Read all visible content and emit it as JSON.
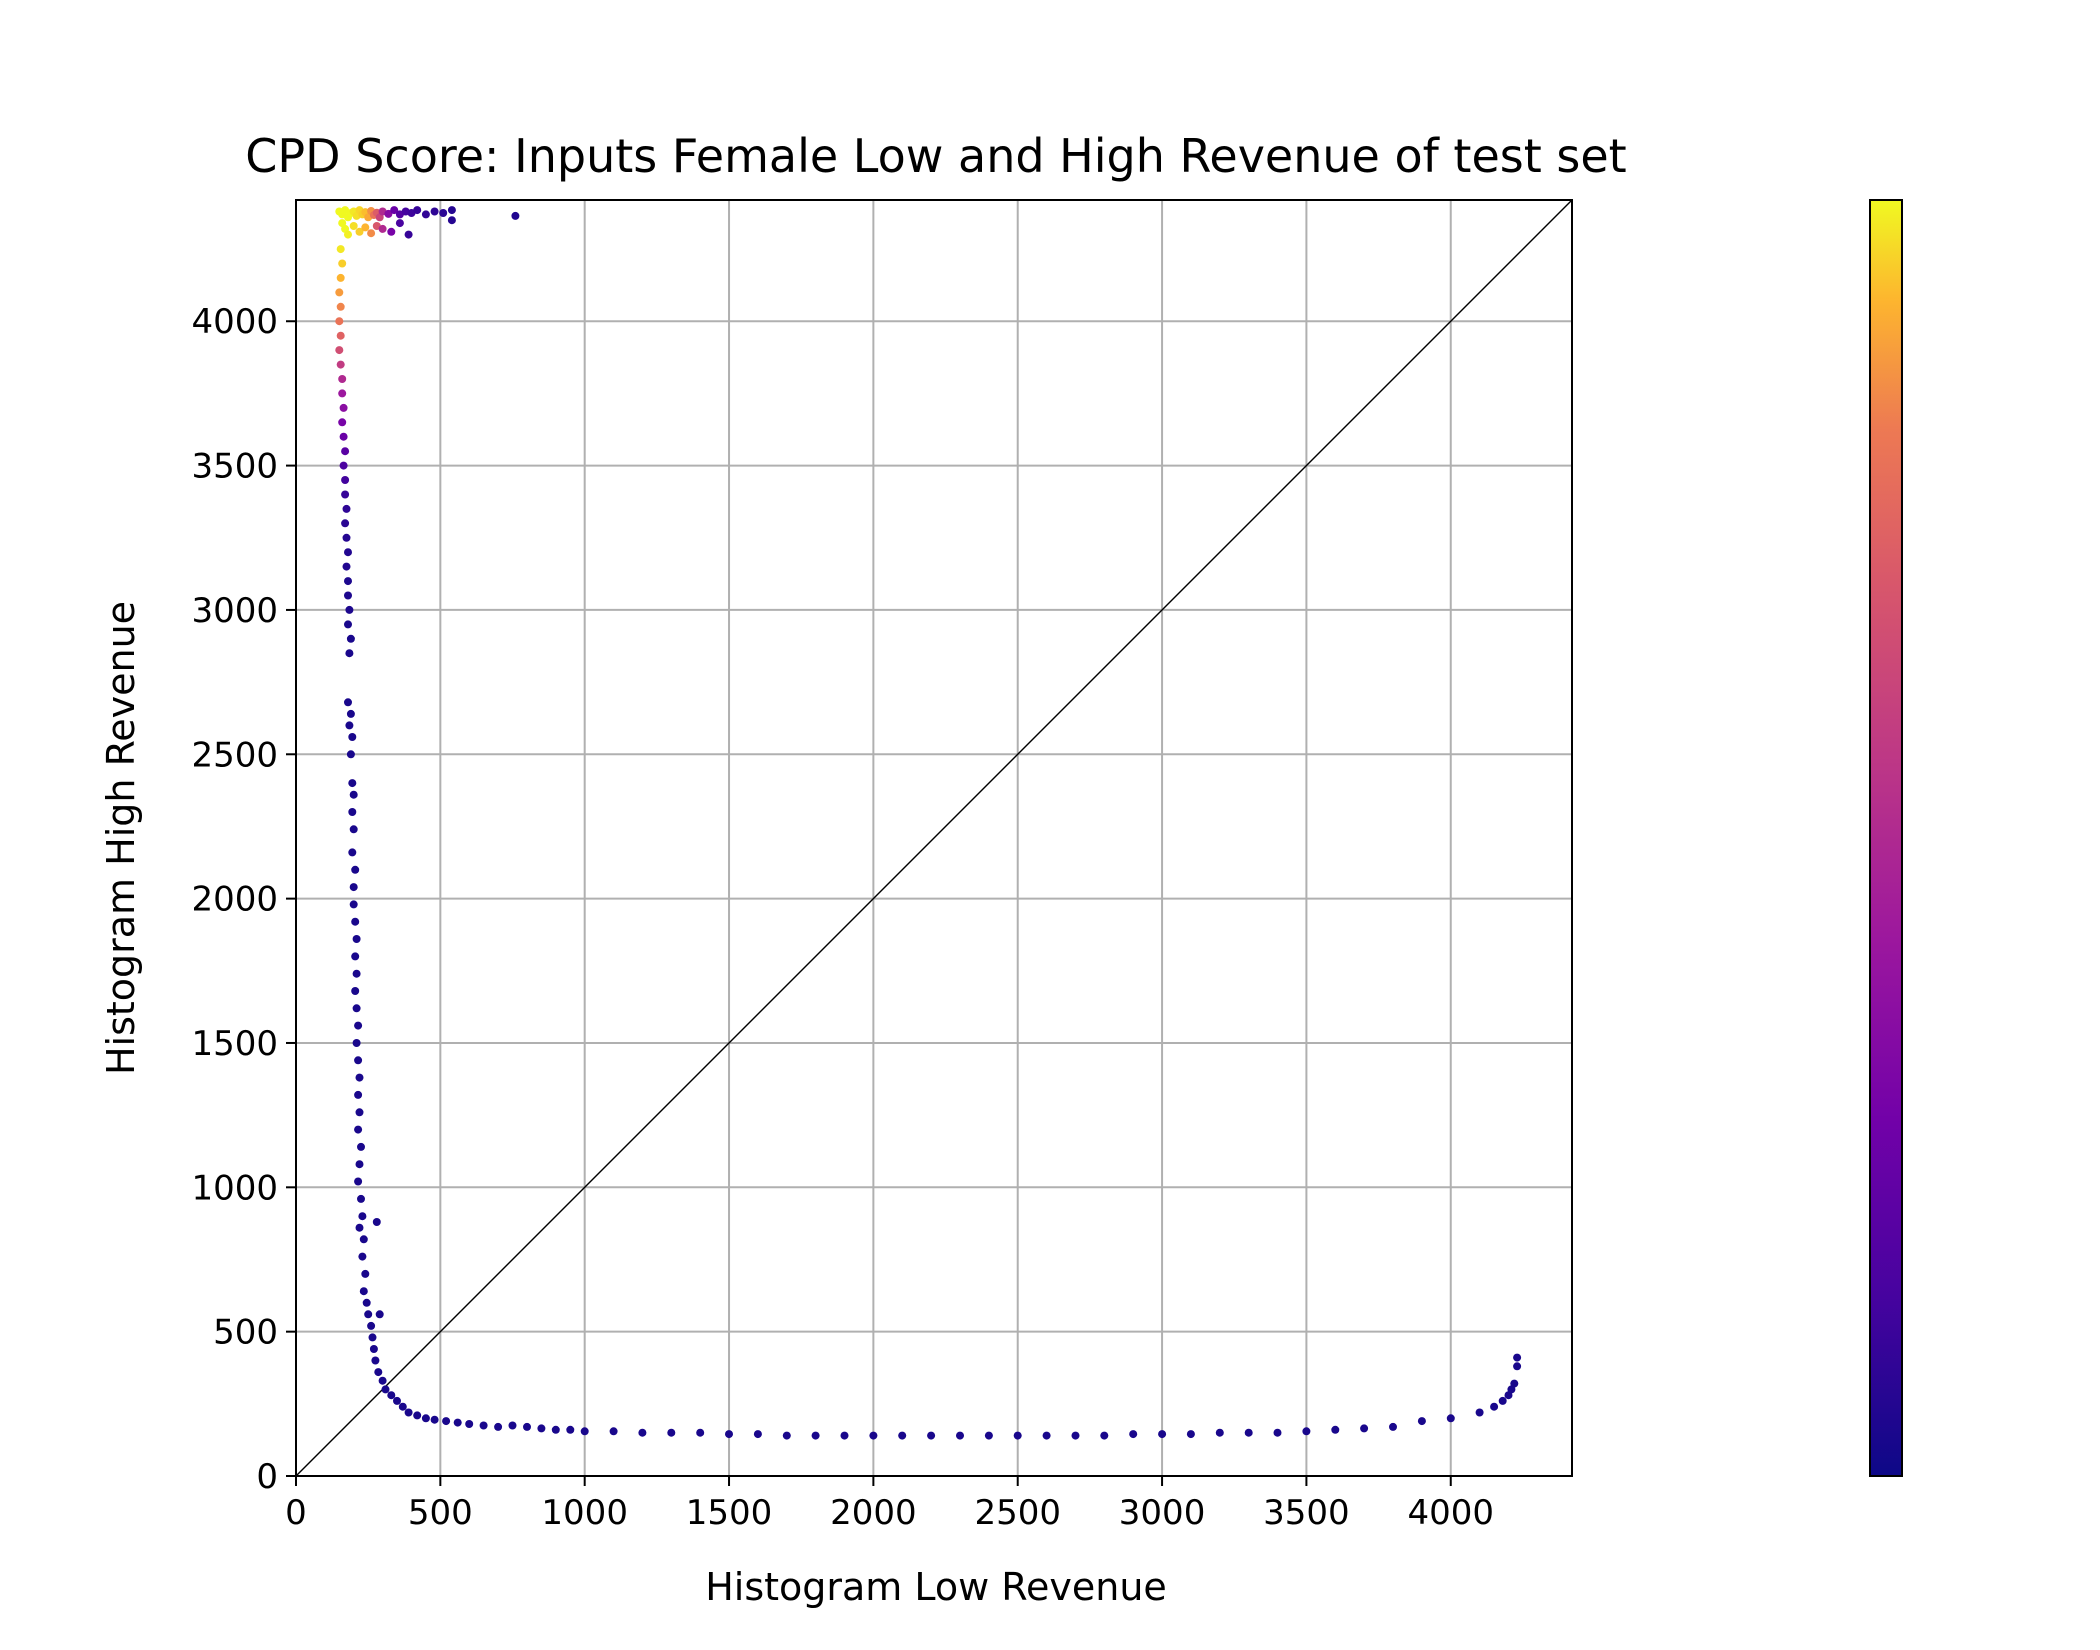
{
  "chart_data": {
    "type": "scatter",
    "title": "CPD Score: Inputs Female Low and High Revenue of test set",
    "xlabel": "Histogram Low Revenue",
    "ylabel": "Histogram High Revenue",
    "xlim": [
      0,
      4420
    ],
    "ylim": [
      0,
      4420
    ],
    "xticks": [
      0,
      500,
      1000,
      1500,
      2000,
      2500,
      3000,
      3500,
      4000
    ],
    "yticks": [
      0,
      500,
      1000,
      1500,
      2000,
      2500,
      3000,
      3500,
      4000
    ],
    "grid": true,
    "reference_line": "y = x",
    "colormap": "plasma",
    "colorbar": {
      "position": "right",
      "ticks": []
    },
    "colors": {
      "plasma_low": "#0d0887",
      "plasma_mid": "#9c179e",
      "plasma_orange": "#ed7953",
      "plasma_high": "#f0f921",
      "grid": "#b0b0b0",
      "axes": "#000000"
    },
    "series": [
      {
        "points": [
          [
            150,
            4380,
            1.0
          ],
          [
            160,
            4370,
            1.0
          ],
          [
            170,
            4385,
            1.0
          ],
          [
            180,
            4360,
            1.0
          ],
          [
            190,
            4375,
            1.0
          ],
          [
            200,
            4380,
            0.98
          ],
          [
            210,
            4365,
            0.97
          ],
          [
            220,
            4385,
            0.96
          ],
          [
            230,
            4370,
            0.95
          ],
          [
            240,
            4378,
            0.93
          ],
          [
            250,
            4360,
            0.9
          ],
          [
            260,
            4382,
            0.86
          ],
          [
            270,
            4368,
            0.8
          ],
          [
            280,
            4376,
            0.72
          ],
          [
            290,
            4360,
            0.62
          ],
          [
            300,
            4380,
            0.5
          ],
          [
            320,
            4372,
            0.35
          ],
          [
            340,
            4385,
            0.25
          ],
          [
            360,
            4370,
            0.18
          ],
          [
            380,
            4380,
            0.14
          ],
          [
            400,
            4375,
            0.12
          ],
          [
            420,
            4385,
            0.1
          ],
          [
            450,
            4370,
            0.09
          ],
          [
            480,
            4380,
            0.08
          ],
          [
            510,
            4375,
            0.07
          ],
          [
            540,
            4385,
            0.06
          ],
          [
            540,
            4350,
            0.06
          ],
          [
            760,
            4365,
            0.05
          ],
          [
            160,
            4340,
            1.0
          ],
          [
            170,
            4320,
            1.0
          ],
          [
            180,
            4300,
            0.99
          ],
          [
            200,
            4330,
            0.97
          ],
          [
            220,
            4310,
            0.95
          ],
          [
            240,
            4325,
            0.92
          ],
          [
            260,
            4305,
            0.85
          ],
          [
            280,
            4330,
            0.7
          ],
          [
            300,
            4320,
            0.5
          ],
          [
            330,
            4310,
            0.3
          ],
          [
            360,
            4340,
            0.15
          ],
          [
            390,
            4300,
            0.1
          ],
          [
            155,
            4250,
            0.98
          ],
          [
            160,
            4200,
            0.95
          ],
          [
            155,
            4150,
            0.92
          ],
          [
            150,
            4100,
            0.88
          ],
          [
            155,
            4050,
            0.84
          ],
          [
            150,
            4000,
            0.8
          ],
          [
            155,
            3950,
            0.74
          ],
          [
            150,
            3900,
            0.66
          ],
          [
            155,
            3850,
            0.58
          ],
          [
            160,
            3800,
            0.5
          ],
          [
            160,
            3750,
            0.42
          ],
          [
            165,
            3700,
            0.36
          ],
          [
            160,
            3650,
            0.3
          ],
          [
            165,
            3600,
            0.25
          ],
          [
            170,
            3550,
            0.2
          ],
          [
            165,
            3500,
            0.16
          ],
          [
            170,
            3450,
            0.13
          ],
          [
            170,
            3400,
            0.1
          ],
          [
            175,
            3350,
            0.08
          ],
          [
            170,
            3300,
            0.07
          ],
          [
            175,
            3250,
            0.06
          ],
          [
            180,
            3200,
            0.05
          ],
          [
            175,
            3150,
            0.05
          ],
          [
            180,
            3100,
            0.04
          ],
          [
            180,
            3050,
            0.04
          ],
          [
            185,
            3000,
            0.04
          ],
          [
            180,
            2950,
            0.03
          ],
          [
            190,
            2900,
            0.03
          ],
          [
            185,
            2850,
            0.03
          ],
          [
            180,
            2680,
            0.03
          ],
          [
            190,
            2640,
            0.03
          ],
          [
            185,
            2600,
            0.03
          ],
          [
            195,
            2560,
            0.03
          ],
          [
            190,
            2500,
            0.03
          ],
          [
            195,
            2400,
            0.03
          ],
          [
            200,
            2360,
            0.03
          ],
          [
            195,
            2300,
            0.03
          ],
          [
            200,
            2240,
            0.03
          ],
          [
            195,
            2160,
            0.03
          ],
          [
            205,
            2100,
            0.03
          ],
          [
            200,
            2040,
            0.03
          ],
          [
            200,
            1980,
            0.03
          ],
          [
            205,
            1920,
            0.03
          ],
          [
            210,
            1860,
            0.03
          ],
          [
            205,
            1800,
            0.03
          ],
          [
            210,
            1740,
            0.03
          ],
          [
            205,
            1680,
            0.03
          ],
          [
            210,
            1620,
            0.03
          ],
          [
            215,
            1560,
            0.03
          ],
          [
            210,
            1500,
            0.03
          ],
          [
            215,
            1440,
            0.03
          ],
          [
            220,
            1380,
            0.03
          ],
          [
            215,
            1320,
            0.03
          ],
          [
            220,
            1260,
            0.03
          ],
          [
            215,
            1200,
            0.03
          ],
          [
            225,
            1140,
            0.03
          ],
          [
            220,
            1080,
            0.03
          ],
          [
            215,
            1020,
            0.03
          ],
          [
            225,
            960,
            0.03
          ],
          [
            230,
            900,
            0.03
          ],
          [
            220,
            860,
            0.03
          ],
          [
            235,
            820,
            0.03
          ],
          [
            230,
            760,
            0.03
          ],
          [
            240,
            700,
            0.03
          ],
          [
            235,
            640,
            0.03
          ],
          [
            245,
            600,
            0.03
          ],
          [
            250,
            560,
            0.03
          ],
          [
            260,
            520,
            0.03
          ],
          [
            265,
            480,
            0.03
          ],
          [
            270,
            440,
            0.03
          ],
          [
            280,
            880,
            0.03
          ],
          [
            290,
            560,
            0.03
          ],
          [
            275,
            400,
            0.03
          ],
          [
            285,
            360,
            0.03
          ],
          [
            300,
            330,
            0.03
          ],
          [
            310,
            300,
            0.03
          ],
          [
            330,
            280,
            0.03
          ],
          [
            350,
            260,
            0.03
          ],
          [
            370,
            240,
            0.03
          ],
          [
            390,
            220,
            0.03
          ],
          [
            420,
            210,
            0.03
          ],
          [
            450,
            200,
            0.03
          ],
          [
            480,
            195,
            0.03
          ],
          [
            520,
            190,
            0.03
          ],
          [
            560,
            185,
            0.03
          ],
          [
            600,
            180,
            0.03
          ],
          [
            650,
            175,
            0.03
          ],
          [
            700,
            170,
            0.03
          ],
          [
            750,
            175,
            0.03
          ],
          [
            800,
            170,
            0.03
          ],
          [
            850,
            165,
            0.03
          ],
          [
            900,
            160,
            0.03
          ],
          [
            950,
            160,
            0.03
          ],
          [
            1000,
            155,
            0.03
          ],
          [
            1100,
            155,
            0.03
          ],
          [
            1200,
            150,
            0.03
          ],
          [
            1300,
            150,
            0.03
          ],
          [
            1400,
            150,
            0.03
          ],
          [
            1500,
            145,
            0.03
          ],
          [
            1600,
            145,
            0.03
          ],
          [
            1700,
            140,
            0.03
          ],
          [
            1800,
            140,
            0.03
          ],
          [
            1900,
            140,
            0.03
          ],
          [
            2000,
            140,
            0.03
          ],
          [
            2100,
            140,
            0.03
          ],
          [
            2200,
            140,
            0.03
          ],
          [
            2300,
            140,
            0.03
          ],
          [
            2400,
            140,
            0.03
          ],
          [
            2500,
            140,
            0.03
          ],
          [
            2600,
            140,
            0.03
          ],
          [
            2700,
            140,
            0.03
          ],
          [
            2800,
            140,
            0.03
          ],
          [
            2900,
            145,
            0.03
          ],
          [
            3000,
            145,
            0.03
          ],
          [
            3100,
            145,
            0.03
          ],
          [
            3200,
            150,
            0.03
          ],
          [
            3300,
            150,
            0.03
          ],
          [
            3400,
            150,
            0.03
          ],
          [
            3500,
            155,
            0.03
          ],
          [
            3600,
            160,
            0.03
          ],
          [
            3700,
            165,
            0.03
          ],
          [
            3800,
            170,
            0.03
          ],
          [
            3900,
            190,
            0.03
          ],
          [
            4000,
            200,
            0.03
          ],
          [
            4100,
            220,
            0.03
          ],
          [
            4150,
            240,
            0.03
          ],
          [
            4180,
            260,
            0.03
          ],
          [
            4200,
            280,
            0.03
          ],
          [
            4210,
            300,
            0.03
          ],
          [
            4220,
            320,
            0.03
          ],
          [
            4230,
            380,
            0.03
          ],
          [
            4230,
            410,
            0.03
          ]
        ]
      }
    ]
  }
}
